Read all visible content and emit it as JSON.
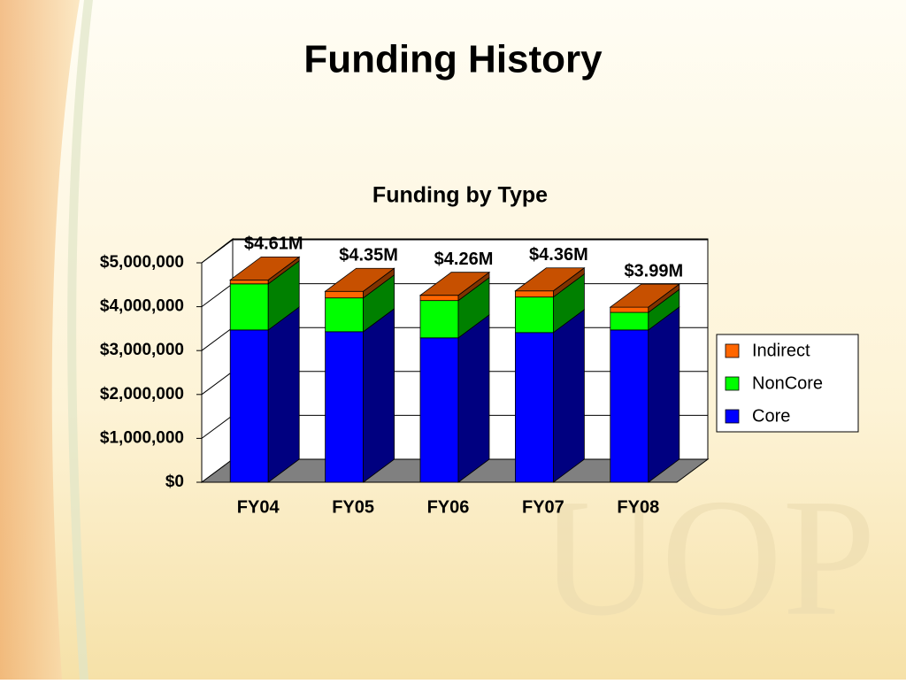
{
  "chart_data": {
    "type": "bar3d_stacked",
    "slide_title": "Funding History",
    "title": "Funding by Type",
    "categories": [
      "FY04",
      "FY05",
      "FY06",
      "FY07",
      "FY08"
    ],
    "series": [
      {
        "name": "Core",
        "color": "#0000ff",
        "values": [
          3470000,
          3430000,
          3290000,
          3410000,
          3470000
        ]
      },
      {
        "name": "NonCore",
        "color": "#00ff00",
        "values": [
          1050000,
          770000,
          850000,
          810000,
          400000
        ]
      },
      {
        "name": "Indirect",
        "color": "#ff6600",
        "values": [
          90000,
          150000,
          120000,
          140000,
          120000
        ]
      }
    ],
    "totals": {
      "values": [
        4610000,
        4350000,
        4260000,
        4360000,
        3990000
      ],
      "value_labels": [
        "$4.61M",
        "$4.35M",
        "$4.26M",
        "$4.36M",
        "$3.99M"
      ]
    },
    "ylim": [
      0,
      5000000
    ],
    "yticks": [
      {
        "value": 0,
        "label": "$0"
      },
      {
        "value": 1000000,
        "label": "$1,000,000"
      },
      {
        "value": 2000000,
        "label": "$2,000,000"
      },
      {
        "value": 3000000,
        "label": "$3,000,000"
      },
      {
        "value": 4000000,
        "label": "$4,000,000"
      },
      {
        "value": 5000000,
        "label": "$5,000,000"
      }
    ],
    "grid": true,
    "legend": "right"
  }
}
